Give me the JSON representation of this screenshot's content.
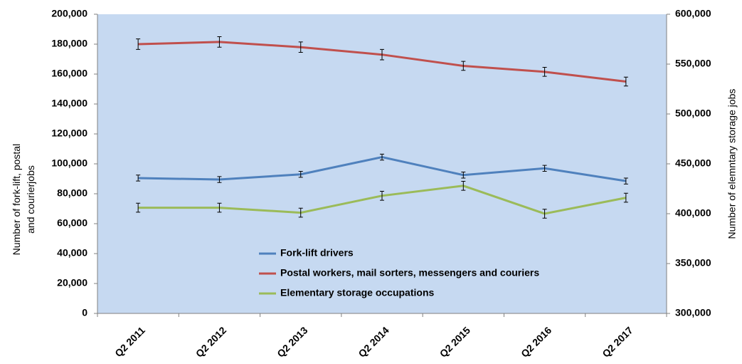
{
  "chart_data": {
    "type": "line",
    "categories": [
      "Q2 2011",
      "Q2 2012",
      "Q2 2013",
      "Q2 2014",
      "Q2 2015",
      "Q2 2016",
      "Q2 2017"
    ],
    "series": [
      {
        "name": "Fork-lift drivers",
        "color": "#4f81bd",
        "axis": "y",
        "values": [
          90500,
          89500,
          93000,
          104500,
          92500,
          97000,
          88500
        ],
        "errors": [
          2000,
          2000,
          2000,
          2000,
          2000,
          2000,
          2000
        ]
      },
      {
        "name": "Postal workers, mail sorters, messengers and couriers",
        "color": "#c0504d",
        "axis": "y",
        "values": [
          180000,
          181500,
          178000,
          173000,
          165500,
          161500,
          155000
        ],
        "errors": [
          3500,
          3500,
          3500,
          3500,
          3000,
          3000,
          3000
        ]
      },
      {
        "name": "Elementary storage occupations",
        "color": "#9bbb59",
        "axis": "y2",
        "values": [
          406000,
          406000,
          401000,
          418000,
          428000,
          400000,
          416000
        ],
        "errors": [
          4500,
          4500,
          4500,
          4500,
          4500,
          4500,
          4500
        ]
      }
    ],
    "ylabel": [
      "Number of fork-lift, postal",
      "and courierjobs"
    ],
    "y2label": "Number of elemntary storage jobs",
    "ylim": [
      0,
      200000
    ],
    "yticks": [
      0,
      {
        "value": 20000,
        "label": "20,000"
      },
      {
        "value": 40000,
        "label": "40,000"
      },
      {
        "value": 60000,
        "label": "60,000"
      },
      {
        "value": 80000,
        "label": "80,000"
      },
      {
        "value": 100000,
        "label": "100,000"
      },
      {
        "value": 120000,
        "label": "120,000"
      },
      {
        "value": 140000,
        "label": "140,000"
      },
      {
        "value": 160000,
        "label": "160,000"
      },
      {
        "value": 180000,
        "label": "180,000"
      },
      {
        "value": 200000,
        "label": "200,000"
      }
    ],
    "y2lim": [
      300000,
      600000
    ],
    "y2ticks": [
      {
        "value": 300000,
        "label": "300,000"
      },
      {
        "value": 350000,
        "label": "350,000"
      },
      {
        "value": 400000,
        "label": "400,000"
      },
      {
        "value": 450000,
        "label": "450,000"
      },
      {
        "value": 500000,
        "label": "500,000"
      },
      {
        "value": 550000,
        "label": "550,000"
      },
      {
        "value": 600000,
        "label": "600,000"
      }
    ],
    "plot_background": "#c6d9f1",
    "legend": "lower-left"
  }
}
